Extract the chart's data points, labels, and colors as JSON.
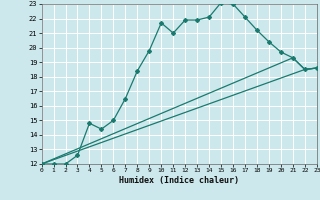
{
  "xlabel": "Humidex (Indice chaleur)",
  "bg_color": "#cce8ec",
  "grid_color": "#ffffff",
  "line_color": "#1a7a6e",
  "xlim": [
    0,
    23
  ],
  "ylim": [
    12,
    23
  ],
  "xticks": [
    0,
    1,
    2,
    3,
    4,
    5,
    6,
    7,
    8,
    9,
    10,
    11,
    12,
    13,
    14,
    15,
    16,
    17,
    18,
    19,
    20,
    21,
    22,
    23
  ],
  "yticks": [
    12,
    13,
    14,
    15,
    16,
    17,
    18,
    19,
    20,
    21,
    22,
    23
  ],
  "line1_x": [
    0,
    1,
    2,
    3,
    4,
    5,
    6,
    7,
    8,
    9,
    10,
    11,
    12,
    13,
    14,
    15,
    16,
    17,
    18,
    19,
    20,
    21,
    22,
    23
  ],
  "line1_y": [
    12,
    12,
    12,
    12.6,
    14.8,
    14.4,
    15.0,
    16.5,
    18.4,
    19.8,
    21.7,
    21.0,
    21.9,
    21.9,
    22.1,
    23.1,
    23.0,
    22.1,
    21.2,
    20.4,
    19.7,
    19.3,
    18.5,
    18.6
  ],
  "line2_x": [
    0,
    21,
    22,
    23
  ],
  "line2_y": [
    12,
    19.3,
    18.5,
    18.6
  ],
  "line3_x": [
    0,
    22,
    23
  ],
  "line3_y": [
    12,
    18.5,
    18.6
  ]
}
